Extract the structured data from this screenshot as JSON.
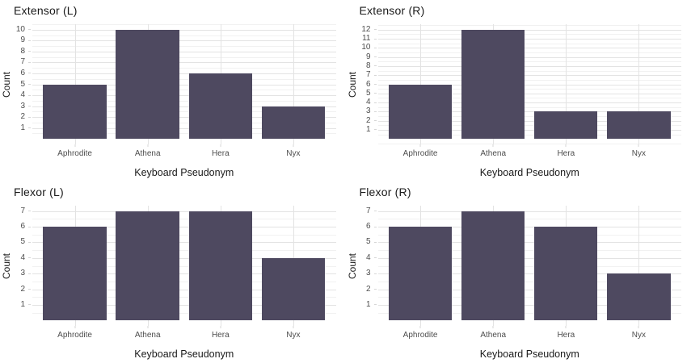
{
  "figure": {
    "background": "#ffffff",
    "layout": "2x2 grid of bar charts",
    "legend": "none"
  },
  "colors": {
    "bar_fill": "#4e4960",
    "grid_major": "#e3e3e3",
    "grid_minor": "#f1f1f1",
    "axis_tick": "#d6d6d6",
    "tick_text": "#4d4d4d",
    "title_text": "#1a1a1a"
  },
  "chart_data": [
    {
      "type": "bar",
      "title": "Extensor (L)",
      "xlabel": "Keyboard Pseudonym",
      "ylabel": "Count",
      "categories": [
        "Aphrodite",
        "Athena",
        "Hera",
        "Nyx"
      ],
      "values": [
        5,
        10,
        6,
        3
      ],
      "yticks": [
        1,
        2,
        3,
        4,
        5,
        6,
        7,
        8,
        9,
        10
      ],
      "ylim": [
        0,
        10
      ],
      "grid": "major and minor horizontal, major vertical at category centers"
    },
    {
      "type": "bar",
      "title": "Extensor (R)",
      "xlabel": "Keyboard Pseudonym",
      "ylabel": "Count",
      "categories": [
        "Aphrodite",
        "Athena",
        "Hera",
        "Nyx"
      ],
      "values": [
        6,
        12,
        3,
        3
      ],
      "yticks": [
        1,
        2,
        3,
        4,
        5,
        6,
        7,
        8,
        9,
        10,
        11,
        12
      ],
      "ylim": [
        0,
        12
      ],
      "grid": "major and minor horizontal, major vertical at category centers"
    },
    {
      "type": "bar",
      "title": "Flexor (L)",
      "xlabel": "Keyboard Pseudonym",
      "ylabel": "Count",
      "categories": [
        "Aphrodite",
        "Athena",
        "Hera",
        "Nyx"
      ],
      "values": [
        6,
        7,
        7,
        4
      ],
      "yticks": [
        1,
        2,
        3,
        4,
        5,
        6,
        7
      ],
      "ylim": [
        0,
        7
      ],
      "grid": "major and minor horizontal, major vertical at category centers"
    },
    {
      "type": "bar",
      "title": "Flexor (R)",
      "xlabel": "Keyboard Pseudonym",
      "ylabel": "Count",
      "categories": [
        "Aphrodite",
        "Athena",
        "Hera",
        "Nyx"
      ],
      "values": [
        6,
        7,
        6,
        3
      ],
      "yticks": [
        1,
        2,
        3,
        4,
        5,
        6,
        7
      ],
      "ylim": [
        0,
        7
      ],
      "grid": "major and minor horizontal, major vertical at category centers"
    }
  ]
}
